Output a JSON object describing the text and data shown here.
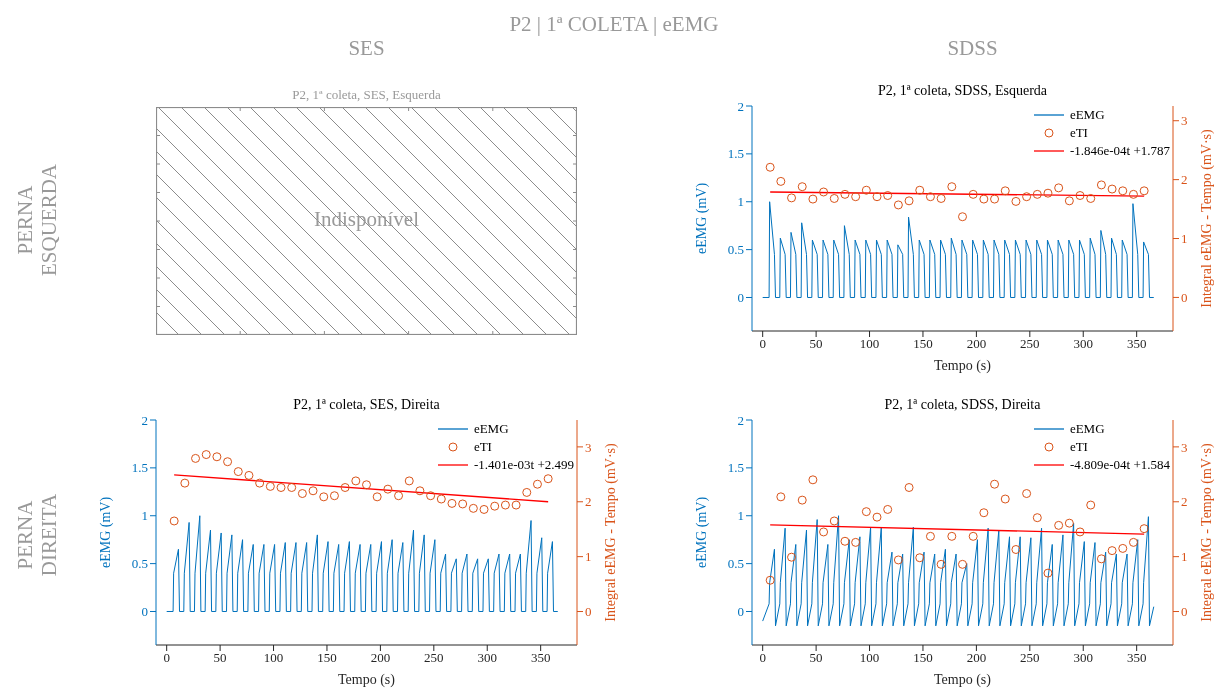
{
  "chart_data": [
    {
      "type": "other",
      "title": "P2, 1ª coleta, SES, Esquerda",
      "annotations": [
        "Indisponível",
        "P2 | 1ª COLETA | eEMG",
        "SES",
        "SDSS",
        "PERNA ESQUERDA",
        "PERNA DIREITA"
      ]
    },
    {
      "type": "line",
      "title": "P2, 1ª coleta, SDSS, Esquerda",
      "xlabel": "Tempo (s)",
      "ylabel": "eEMG (mV)",
      "y2label": "Integral eEMG - Tempo (mV·s)",
      "xlim": [
        -10,
        384
      ],
      "xticks": [
        0,
        50,
        100,
        150,
        200,
        250,
        300,
        350
      ],
      "ylim": [
        -0.35,
        2
      ],
      "yticks": [
        0,
        0.5,
        1,
        1.5,
        2
      ],
      "y2lim": [
        -0.57,
        3.25
      ],
      "y2ticks": [
        0,
        1,
        2,
        3
      ],
      "legend": "top right",
      "series": [
        {
          "name": "eEMG",
          "type": "line",
          "marker": "none",
          "color": "#0072bd",
          "x": [
            0,
            6,
            6.5,
            11,
            12,
            16,
            16.5,
            21,
            22,
            26,
            26.5,
            31,
            32,
            36,
            36.5,
            41,
            42,
            46,
            46.5,
            51,
            52,
            56,
            56.5,
            61,
            62,
            66,
            66.5,
            71,
            72,
            76,
            76.5,
            81,
            82,
            86,
            86.5,
            91,
            92,
            96,
            96.5,
            101,
            102,
            106,
            106.5,
            111,
            112,
            116,
            116.5,
            121,
            122,
            126,
            126.5,
            131,
            132,
            136,
            136.5,
            141,
            142,
            146,
            146.5,
            151,
            152,
            156,
            156.5,
            161,
            162,
            166,
            166.5,
            171,
            172,
            176,
            176.5,
            181,
            182,
            186,
            186.5,
            191,
            192,
            196,
            196.5,
            201,
            202,
            206,
            206.5,
            211,
            212,
            216,
            216.5,
            221,
            222,
            226,
            226.5,
            231,
            232,
            236,
            236.5,
            241,
            242,
            246,
            246.5,
            251,
            252,
            256,
            256.5,
            261,
            262,
            266,
            266.5,
            271,
            272,
            276,
            276.5,
            281,
            282,
            286,
            286.5,
            291,
            292,
            296,
            296.5,
            301,
            302,
            306,
            306.5,
            311,
            312,
            316,
            316.5,
            321,
            322,
            326,
            326.5,
            331,
            332,
            336,
            336.5,
            341,
            342,
            346,
            346.5,
            351,
            352,
            356,
            356.5,
            361,
            362,
            366
          ],
          "values": [
            0,
            0,
            1.0,
            0.45,
            0,
            0,
            0.62,
            0.45,
            0,
            0,
            0.68,
            0.45,
            0,
            0,
            0.78,
            0.45,
            0,
            0,
            0.6,
            0.45,
            0,
            0,
            0.6,
            0.45,
            0,
            0,
            0.6,
            0.45,
            0,
            0,
            0.75,
            0.45,
            0,
            0,
            0.6,
            0.45,
            0,
            0,
            0.6,
            0.45,
            0,
            0,
            0.6,
            0.45,
            0,
            0,
            0.6,
            0.45,
            0,
            0,
            0.55,
            0.45,
            0,
            0,
            0.84,
            0.45,
            0,
            0,
            0.6,
            0.45,
            0,
            0,
            0.6,
            0.45,
            0,
            0,
            0.6,
            0.45,
            0,
            0,
            0.62,
            0.45,
            0,
            0,
            0.6,
            0.45,
            0,
            0,
            0.6,
            0.45,
            0,
            0,
            0.6,
            0.45,
            0,
            0,
            0.6,
            0.45,
            0,
            0,
            0.6,
            0.45,
            0,
            0,
            0.6,
            0.45,
            0,
            0,
            0.6,
            0.45,
            0,
            0,
            0.6,
            0.45,
            0,
            0,
            0.6,
            0.45,
            0,
            0,
            0.6,
            0.45,
            0,
            0,
            0.6,
            0.45,
            0,
            0,
            0.6,
            0.45,
            0,
            0,
            0.62,
            0.45,
            0,
            0,
            0.7,
            0.45,
            0,
            0,
            0.62,
            0.45,
            0,
            0,
            0.6,
            0.45,
            0,
            0,
            0.98,
            0.45,
            0,
            0,
            0.58,
            0.45,
            0,
            0
          ]
        },
        {
          "name": "eTI",
          "type": "scatter",
          "marker": "circle",
          "axis": "y2",
          "color": "#d95319",
          "x": [
            7,
            17,
            27,
            37,
            47,
            57,
            67,
            77,
            87,
            97,
            107,
            117,
            127,
            137,
            147,
            157,
            167,
            177,
            187,
            197,
            207,
            217,
            227,
            237,
            247,
            257,
            267,
            277,
            287,
            297,
            307,
            317,
            327,
            337,
            347,
            357
          ],
          "values": [
            2.21,
            1.97,
            1.69,
            1.88,
            1.67,
            1.79,
            1.68,
            1.75,
            1.71,
            1.82,
            1.71,
            1.73,
            1.57,
            1.64,
            1.82,
            1.71,
            1.68,
            1.88,
            1.37,
            1.75,
            1.67,
            1.67,
            1.81,
            1.63,
            1.71,
            1.75,
            1.77,
            1.86,
            1.64,
            1.73,
            1.68,
            1.91,
            1.84,
            1.81,
            1.75,
            1.81
          ]
        },
        {
          "name": "-1.846e-04t +1.787",
          "type": "line",
          "marker": "none",
          "axis": "y2",
          "color": "#ff0000",
          "x": [
            7,
            357
          ],
          "values": [
            1.79,
            1.72
          ]
        }
      ]
    },
    {
      "type": "line",
      "title": "P2, 1ª coleta, SES, Direita",
      "xlabel": "Tempo (s)",
      "ylabel": "eEMG (mV)",
      "y2label": "Integral eEMG - Tempo (mV·s)",
      "xlim": [
        -10,
        384
      ],
      "xticks": [
        0,
        50,
        100,
        150,
        200,
        250,
        300,
        350
      ],
      "ylim": [
        -0.35,
        2
      ],
      "yticks": [
        0,
        0.5,
        1,
        1.5,
        2
      ],
      "y2lim": [
        -0.61,
        3.49
      ],
      "y2ticks": [
        0,
        1,
        2,
        3
      ],
      "legend": "top right",
      "series": [
        {
          "name": "eEMG",
          "type": "line",
          "marker": "none",
          "color": "#0072bd",
          "x": [
            0,
            6,
            6.5,
            11,
            12,
            16,
            16.5,
            21,
            22,
            26,
            26.5,
            31,
            32,
            36,
            36.5,
            41,
            42,
            46,
            46.5,
            51,
            52,
            56,
            56.5,
            61,
            62,
            66,
            66.5,
            71,
            72,
            76,
            76.5,
            81,
            82,
            86,
            86.5,
            91,
            92,
            96,
            96.5,
            101,
            102,
            106,
            106.5,
            111,
            112,
            116,
            116.5,
            121,
            122,
            126,
            126.5,
            131,
            132,
            136,
            136.5,
            141,
            142,
            146,
            146.5,
            151,
            152,
            156,
            156.5,
            161,
            162,
            166,
            166.5,
            171,
            172,
            176,
            176.5,
            181,
            182,
            186,
            186.5,
            191,
            192,
            196,
            196.5,
            201,
            202,
            206,
            206.5,
            211,
            212,
            216,
            216.5,
            221,
            222,
            226,
            226.5,
            231,
            232,
            236,
            236.5,
            241,
            242,
            246,
            246.5,
            251,
            252,
            256,
            256.5,
            261,
            262,
            266,
            266.5,
            271,
            272,
            276,
            276.5,
            281,
            282,
            286,
            286.5,
            291,
            292,
            296,
            296.5,
            301,
            302,
            306,
            306.5,
            311,
            312,
            316,
            316.5,
            321,
            322,
            326,
            326.5,
            331,
            332,
            336,
            336.5,
            341,
            342,
            346,
            346.5,
            351,
            352,
            356,
            356.5,
            361,
            362,
            366
          ],
          "values": [
            0,
            0,
            0.4,
            0.65,
            0,
            0,
            0.4,
            0.93,
            0,
            0,
            0.4,
            1.0,
            0,
            0,
            0.4,
            0.85,
            0,
            0,
            0.4,
            0.82,
            0,
            0,
            0.4,
            0.8,
            0,
            0,
            0.4,
            0.75,
            0,
            0,
            0.4,
            0.7,
            0,
            0,
            0.4,
            0.7,
            0,
            0,
            0.4,
            0.7,
            0,
            0,
            0.4,
            0.72,
            0,
            0,
            0.4,
            0.72,
            0,
            0,
            0.4,
            0.72,
            0,
            0,
            0.4,
            0.8,
            0,
            0,
            0.4,
            0.73,
            0,
            0,
            0.4,
            0.7,
            0,
            0,
            0.4,
            0.73,
            0,
            0,
            0.4,
            0.7,
            0,
            0,
            0.4,
            0.7,
            0,
            0,
            0.4,
            0.73,
            0,
            0,
            0.4,
            0.75,
            0,
            0,
            0.4,
            0.72,
            0,
            0,
            0.4,
            0.85,
            0,
            0,
            0.4,
            0.8,
            0,
            0,
            0.4,
            0.75,
            0,
            0,
            0.4,
            0.6,
            0,
            0,
            0.4,
            0.55,
            0,
            0,
            0.4,
            0.6,
            0,
            0,
            0.4,
            0.55,
            0,
            0,
            0.4,
            0.55,
            0,
            0,
            0.4,
            0.6,
            0,
            0,
            0.4,
            0.6,
            0,
            0,
            0.4,
            0.6,
            0,
            0,
            0.4,
            0.95,
            0,
            0,
            0.4,
            0.77,
            0,
            0,
            0.4,
            0.73,
            0,
            0
          ]
        },
        {
          "name": "eTI",
          "type": "scatter",
          "marker": "circle",
          "axis": "y2",
          "color": "#d95319",
          "x": [
            7,
            17,
            27,
            37,
            47,
            57,
            67,
            77,
            87,
            97,
            107,
            117,
            127,
            137,
            147,
            157,
            167,
            177,
            187,
            197,
            207,
            217,
            227,
            237,
            247,
            257,
            267,
            277,
            287,
            297,
            307,
            317,
            327,
            337,
            347,
            357
          ],
          "values": [
            1.65,
            2.34,
            2.79,
            2.86,
            2.82,
            2.73,
            2.55,
            2.48,
            2.34,
            2.28,
            2.26,
            2.26,
            2.15,
            2.2,
            2.09,
            2.11,
            2.26,
            2.38,
            2.31,
            2.09,
            2.23,
            2.11,
            2.38,
            2.2,
            2.11,
            2.05,
            1.97,
            1.96,
            1.88,
            1.86,
            1.92,
            1.94,
            1.94,
            2.17,
            2.32,
            2.42
          ]
        },
        {
          "name": "-1.401e-03t +2.499",
          "type": "line",
          "marker": "none",
          "axis": "y2",
          "color": "#ff0000",
          "x": [
            7,
            357
          ],
          "values": [
            2.49,
            2.0
          ]
        }
      ]
    },
    {
      "type": "line",
      "title": "P2, 1ª coleta, SDSS, Direita",
      "xlabel": "Tempo (s)",
      "ylabel": "eEMG (mV)",
      "y2label": "Integral eEMG - Tempo (mV·s)",
      "xlim": [
        -10,
        384
      ],
      "xticks": [
        0,
        50,
        100,
        150,
        200,
        250,
        300,
        350
      ],
      "ylim": [
        -0.35,
        2
      ],
      "yticks": [
        0,
        0.5,
        1,
        1.5,
        2
      ],
      "y2lim": [
        -0.61,
        3.49
      ],
      "y2ticks": [
        0,
        1,
        2,
        3
      ],
      "legend": "top right",
      "series": [
        {
          "name": "eEMG",
          "type": "line",
          "marker": "none",
          "color": "#0072bd",
          "x": [
            0,
            6,
            6.5,
            11,
            12,
            16,
            16.5,
            21,
            22,
            26,
            26.5,
            31,
            32,
            36,
            36.5,
            41,
            42,
            46,
            46.5,
            51,
            52,
            56,
            56.5,
            61,
            62,
            66,
            66.5,
            71,
            72,
            76,
            76.5,
            81,
            82,
            86,
            86.5,
            91,
            92,
            96,
            96.5,
            101,
            102,
            106,
            106.5,
            111,
            112,
            116,
            116.5,
            121,
            122,
            126,
            126.5,
            131,
            132,
            136,
            136.5,
            141,
            142,
            146,
            146.5,
            151,
            152,
            156,
            156.5,
            161,
            162,
            166,
            166.5,
            171,
            172,
            176,
            176.5,
            181,
            182,
            186,
            186.5,
            191,
            192,
            196,
            196.5,
            201,
            202,
            206,
            206.5,
            211,
            212,
            216,
            216.5,
            221,
            222,
            226,
            226.5,
            231,
            232,
            236,
            236.5,
            241,
            242,
            246,
            246.5,
            251,
            252,
            256,
            256.5,
            261,
            262,
            266,
            266.5,
            271,
            272,
            276,
            276.5,
            281,
            282,
            286,
            286.5,
            291,
            292,
            296,
            296.5,
            301,
            302,
            306,
            306.5,
            311,
            312,
            316,
            316.5,
            321,
            322,
            326,
            326.5,
            331,
            332,
            336,
            336.5,
            341,
            342,
            346,
            346.5,
            351,
            352,
            356,
            356.5,
            361,
            362,
            366
          ],
          "values": [
            -0.1,
            0.08,
            0.3,
            0.65,
            -0.15,
            0.08,
            0.3,
            0.87,
            -0.15,
            0.08,
            0.3,
            0.7,
            -0.15,
            0.08,
            0.3,
            0.85,
            -0.15,
            0.08,
            0.3,
            0.96,
            -0.15,
            0.08,
            0.3,
            0.7,
            -0.15,
            0.08,
            0.3,
            1.0,
            -0.15,
            0.08,
            0.3,
            0.75,
            -0.15,
            0.08,
            0.3,
            0.78,
            -0.15,
            0.08,
            0.3,
            0.88,
            -0.15,
            0.08,
            0.3,
            0.88,
            -0.15,
            0.08,
            0.3,
            0.62,
            -0.15,
            0.08,
            0.3,
            0.6,
            -0.15,
            0.08,
            0.3,
            0.88,
            -0.15,
            0.08,
            0.3,
            0.62,
            -0.15,
            0.08,
            0.3,
            0.6,
            -0.15,
            0.08,
            0.3,
            0.65,
            -0.15,
            0.08,
            0.3,
            0.6,
            -0.15,
            0.08,
            0.3,
            0.5,
            -0.15,
            0.08,
            0.3,
            0.75,
            -0.15,
            0.08,
            0.3,
            0.87,
            -0.15,
            0.08,
            0.3,
            0.85,
            -0.15,
            0.08,
            0.3,
            0.78,
            -0.15,
            0.08,
            0.3,
            0.78,
            -0.15,
            0.08,
            0.3,
            0.77,
            -0.15,
            0.08,
            0.3,
            0.87,
            -0.15,
            0.08,
            0.3,
            0.7,
            -0.15,
            0.08,
            0.3,
            0.8,
            -0.15,
            0.08,
            0.3,
            0.92,
            -0.15,
            0.08,
            0.3,
            0.73,
            -0.15,
            0.08,
            0.3,
            0.72,
            -0.15,
            0.08,
            0.3,
            0.62,
            -0.15,
            0.08,
            0.3,
            0.6,
            -0.15,
            0.08,
            0.3,
            0.6,
            -0.15,
            0.08,
            0.3,
            0.75,
            -0.15,
            0.08,
            0.3,
            0.99,
            -0.15,
            0.05
          ]
        },
        {
          "name": "eTI",
          "type": "scatter",
          "marker": "circle",
          "axis": "y2",
          "color": "#d95319",
          "x": [
            7,
            17,
            27,
            37,
            47,
            57,
            67,
            77,
            87,
            97,
            107,
            117,
            127,
            137,
            147,
            157,
            167,
            177,
            187,
            197,
            207,
            217,
            227,
            237,
            247,
            257,
            267,
            277,
            287,
            297,
            307,
            317,
            327,
            337,
            347,
            357
          ],
          "values": [
            0.57,
            2.09,
            0.99,
            2.03,
            2.4,
            1.45,
            1.65,
            1.28,
            1.26,
            1.82,
            1.72,
            1.86,
            0.94,
            2.26,
            0.98,
            1.37,
            0.86,
            1.37,
            0.86,
            1.37,
            1.8,
            2.32,
            2.05,
            1.13,
            2.15,
            1.71,
            0.7,
            1.57,
            1.61,
            1.45,
            1.94,
            0.96,
            1.11,
            1.15,
            1.26,
            1.51
          ]
        },
        {
          "name": "-4.809e-04t +1.584",
          "type": "line",
          "marker": "none",
          "axis": "y2",
          "color": "#ff0000",
          "x": [
            7,
            357
          ],
          "values": [
            1.58,
            1.41
          ]
        }
      ]
    }
  ]
}
